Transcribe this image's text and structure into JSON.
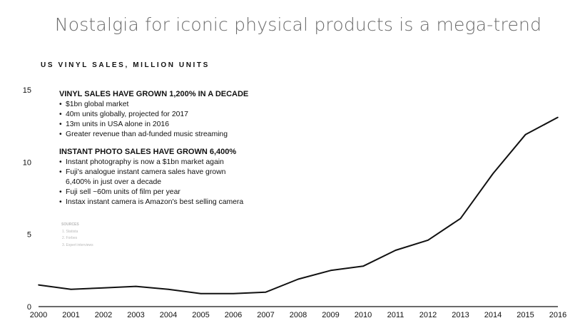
{
  "page": {
    "title": "Nostalgia for iconic physical products is a mega-trend"
  },
  "notes": {
    "vinyl_heading": "VINYL SALES HAVE GROWN 1,200% IN A DECADE",
    "vinyl_points": [
      "$1bn global market",
      "40m units globally, projected for 2017",
      "13m units in USA alone in 2016",
      "Greater revenue than ad-funded music streaming"
    ],
    "photo_heading": "INSTANT PHOTO SALES HAVE GROWN 6,400%",
    "photo_points": [
      "Instant photography is now a $1bn market again",
      "Fuji's analogue instant camera sales have grown",
      "6,400% in just over a decade",
      "Fuji sell ~60m units of film per year",
      "Instax instant camera is Amazon's best selling camera"
    ],
    "sources_title": "SOURCES",
    "sources": [
      "1.  Statista",
      "2.  Forbes",
      "3.  Expert interviews"
    ]
  },
  "chart_data": {
    "type": "line",
    "title": "US VINYL SALES, MILLION UNITS",
    "xlabel": "",
    "ylabel": "",
    "x": [
      "2000",
      "2001",
      "2002",
      "2003",
      "2004",
      "2005",
      "2006",
      "2007",
      "2008",
      "2009",
      "2010",
      "2011",
      "2012",
      "2013",
      "2014",
      "2015",
      "2016"
    ],
    "series": [
      {
        "values": [
          1.5,
          1.2,
          1.3,
          1.4,
          1.2,
          0.9,
          0.9,
          1.0,
          1.9,
          2.5,
          2.8,
          3.9,
          4.6,
          6.1,
          9.2,
          11.9,
          13.1
        ]
      }
    ],
    "yticks": [
      0,
      5,
      10,
      15
    ],
    "ylim": [
      0,
      15
    ],
    "grid": false,
    "line_color": "#111111",
    "legend": "none"
  }
}
